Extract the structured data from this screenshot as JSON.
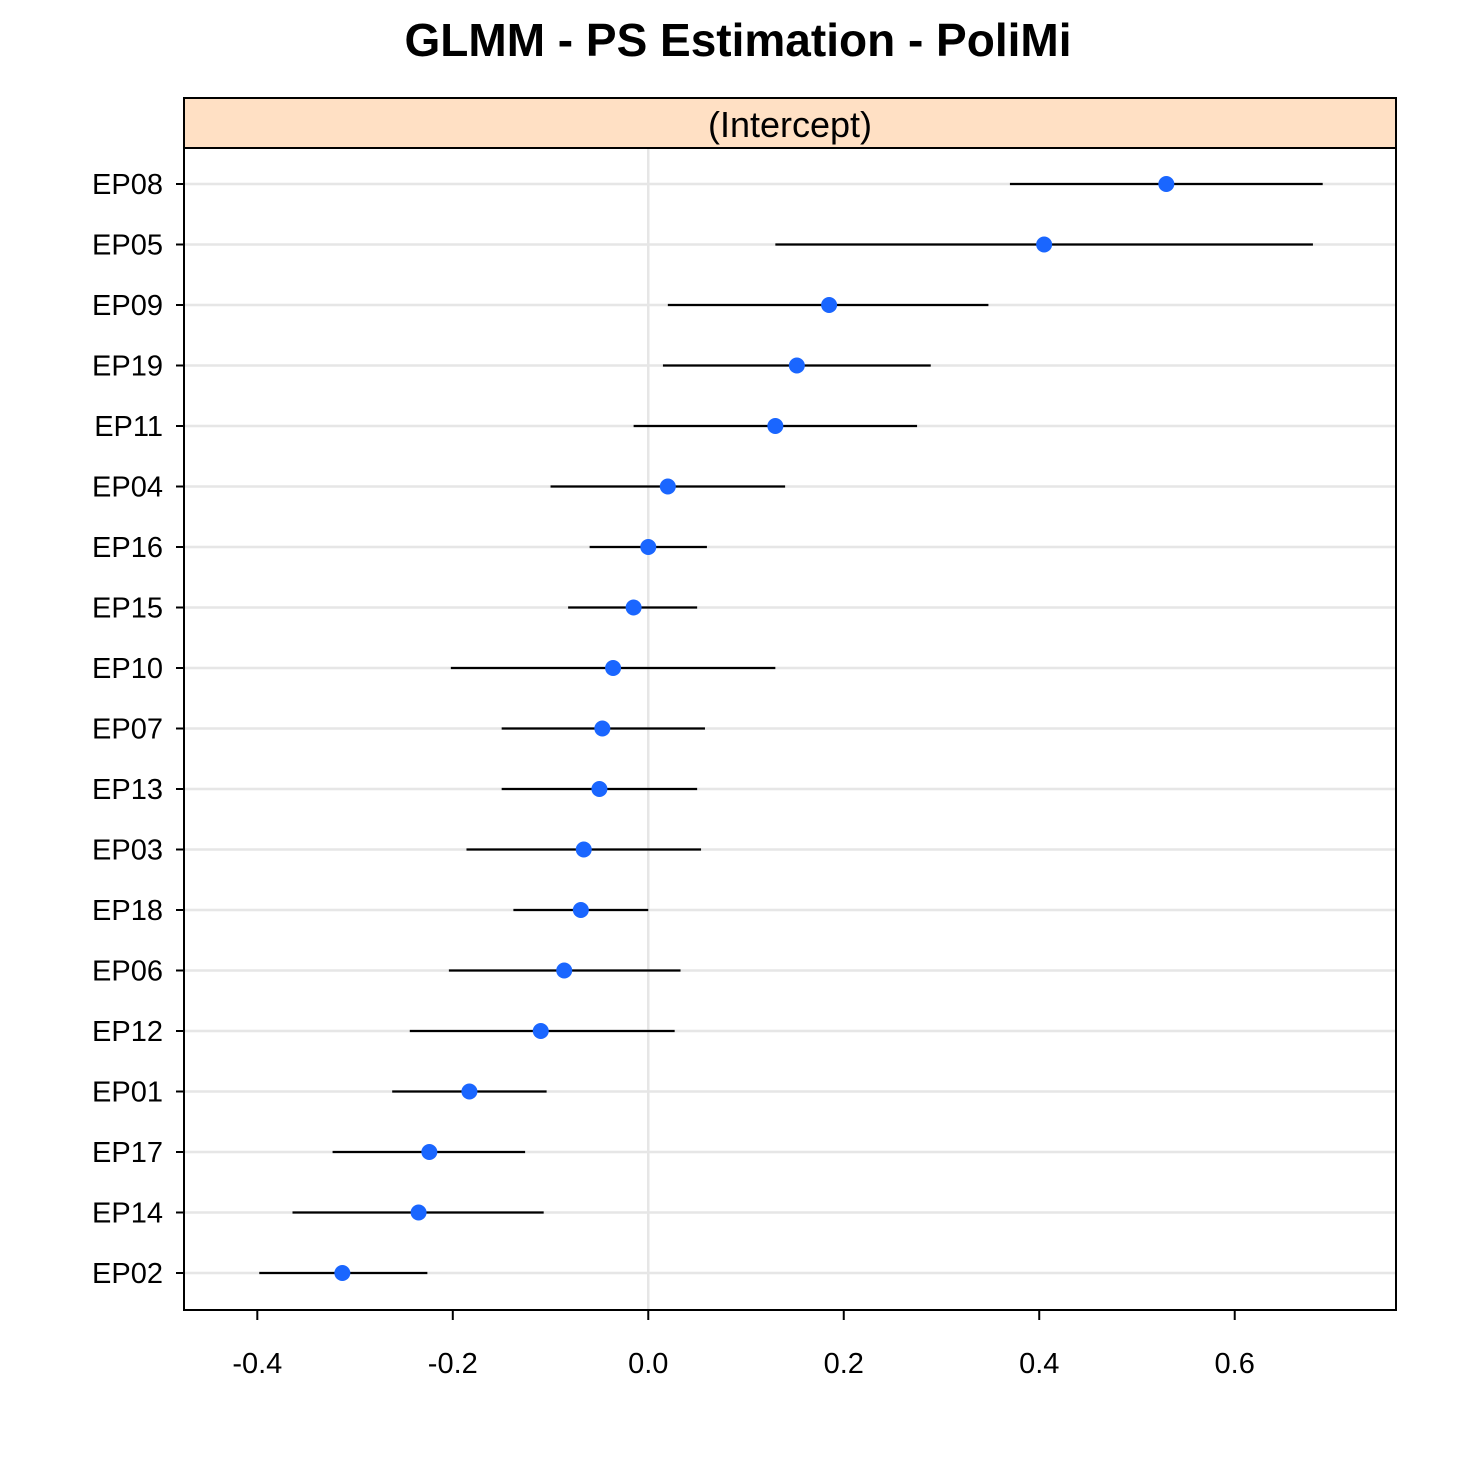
{
  "chart_data": {
    "type": "dotplot-errorbar",
    "title": "GLMM - PS Estimation - PoliMi",
    "panel_label": "(Intercept)",
    "xlabel": "",
    "ylabel": "",
    "xlim": [
      -0.475,
      0.765
    ],
    "x_ticks": [
      -0.4,
      -0.2,
      0.0,
      0.2,
      0.4,
      0.6
    ],
    "x_tick_labels": [
      "-0.4",
      "-0.2",
      "0.0",
      "0.2",
      "0.4",
      "0.6"
    ],
    "reference_line": 0.0,
    "colors": {
      "point": "#1a66ff",
      "errorbar": "#000000",
      "gridline": "#e6e6e6",
      "strip": "#ffe0c4",
      "frame": "#000000"
    },
    "points": [
      {
        "label": "EP08",
        "estimate": 0.53,
        "lower": 0.37,
        "upper": 0.69
      },
      {
        "label": "EP05",
        "estimate": 0.405,
        "lower": 0.13,
        "upper": 0.68
      },
      {
        "label": "EP09",
        "estimate": 0.185,
        "lower": 0.02,
        "upper": 0.348
      },
      {
        "label": "EP19",
        "estimate": 0.152,
        "lower": 0.015,
        "upper": 0.289
      },
      {
        "label": "EP11",
        "estimate": 0.13,
        "lower": -0.015,
        "upper": 0.275
      },
      {
        "label": "EP04",
        "estimate": 0.02,
        "lower": -0.1,
        "upper": 0.14
      },
      {
        "label": "EP16",
        "estimate": 0.0,
        "lower": -0.06,
        "upper": 0.06
      },
      {
        "label": "EP15",
        "estimate": -0.015,
        "lower": -0.082,
        "upper": 0.05
      },
      {
        "label": "EP10",
        "estimate": -0.036,
        "lower": -0.202,
        "upper": 0.13
      },
      {
        "label": "EP07",
        "estimate": -0.047,
        "lower": -0.15,
        "upper": 0.058
      },
      {
        "label": "EP13",
        "estimate": -0.05,
        "lower": -0.15,
        "upper": 0.05
      },
      {
        "label": "EP03",
        "estimate": -0.066,
        "lower": -0.186,
        "upper": 0.054
      },
      {
        "label": "EP18",
        "estimate": -0.069,
        "lower": -0.138,
        "upper": 0.0
      },
      {
        "label": "EP06",
        "estimate": -0.086,
        "lower": -0.204,
        "upper": 0.033
      },
      {
        "label": "EP12",
        "estimate": -0.11,
        "lower": -0.244,
        "upper": 0.027
      },
      {
        "label": "EP01",
        "estimate": -0.183,
        "lower": -0.262,
        "upper": -0.104
      },
      {
        "label": "EP17",
        "estimate": -0.224,
        "lower": -0.323,
        "upper": -0.126
      },
      {
        "label": "EP14",
        "estimate": -0.235,
        "lower": -0.364,
        "upper": -0.107
      },
      {
        "label": "EP02",
        "estimate": -0.313,
        "lower": -0.398,
        "upper": -0.226
      }
    ]
  }
}
